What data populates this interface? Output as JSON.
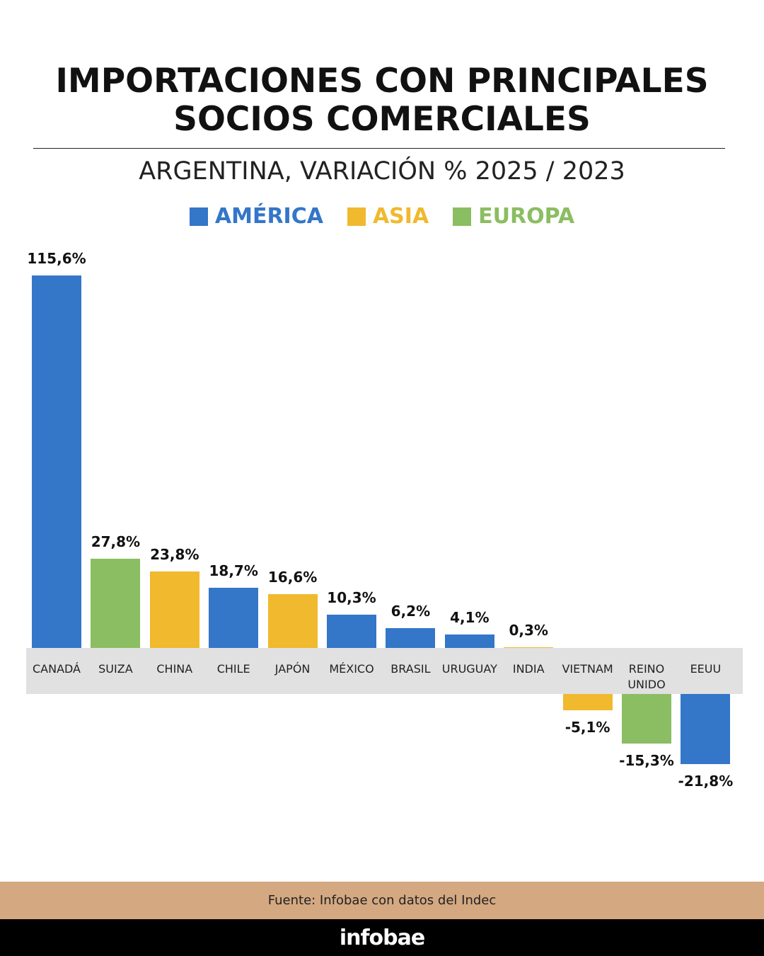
{
  "chart_data": {
    "type": "bar",
    "title": "IMPORTACIONES CON PRINCIPALES SOCIOS COMERCIALES",
    "subtitle": "ARGENTINA, VARIACIÓN % 2025 / 2023",
    "legend": [
      {
        "name": "AMÉRICA",
        "color": "#3476c8"
      },
      {
        "name": "ASIA",
        "color": "#f0b92e"
      },
      {
        "name": "EUROPA",
        "color": "#8bbd62"
      }
    ],
    "categories": [
      "CANADÁ",
      "SUIZA",
      "CHINA",
      "CHILE",
      "JAPÓN",
      "MÉXICO",
      "BRASIL",
      "URUGUAY",
      "INDIA",
      "VIETNAM",
      "REINO UNIDO",
      "EEUU"
    ],
    "values": [
      115.6,
      27.8,
      23.8,
      18.7,
      16.6,
      10.3,
      6.2,
      4.1,
      0.3,
      -5.1,
      -15.3,
      -21.8
    ],
    "value_labels": [
      "115,6%",
      "27,8%",
      "23,8%",
      "18,7%",
      "16,6%",
      "10,3%",
      "6,2%",
      "4,1%",
      "0,3%",
      "-5,1%",
      "-15,3%",
      "-21,8%"
    ],
    "colors": [
      "#3476c8",
      "#8bbd62",
      "#f0b92e",
      "#3476c8",
      "#f0b92e",
      "#3476c8",
      "#3476c8",
      "#3476c8",
      "#f0b92e",
      "#f0b92e",
      "#8bbd62",
      "#3476c8"
    ]
  },
  "footer": {
    "source": "Fuente: Infobae con datos del Indec",
    "brand": "infobae"
  }
}
